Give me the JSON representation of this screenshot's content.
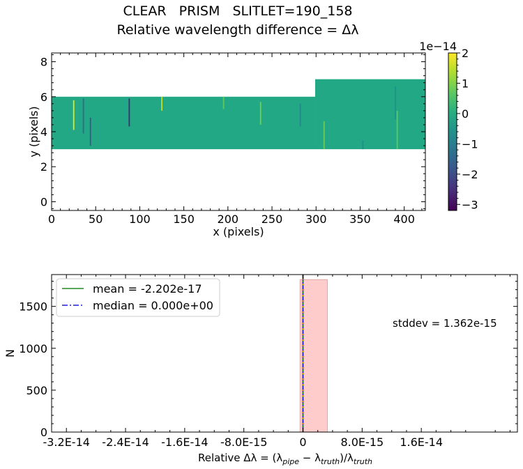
{
  "figure": {
    "title_line1": "CLEAR   PRISM   SLITLET=190_158",
    "title_line2": "Relative wavelength difference = Δλ"
  },
  "colors": {
    "viridis_low": "#440154",
    "viridis_mid": "#21908d",
    "viridis_high": "#fde725",
    "fill_value": "#22a884",
    "hist_fill": "#ffcccc",
    "mean_line": "#228b22",
    "median_line": "#1f1fdc",
    "zero_line": "#00008b"
  },
  "chart_data": [
    {
      "type": "heatmap",
      "xlabel": "x (pixels)",
      "ylabel": "y (pixels)",
      "xlim": [
        0,
        424
      ],
      "ylim": [
        -0.5,
        8.5
      ],
      "x_ticks": [
        0,
        50,
        100,
        150,
        200,
        250,
        300,
        350,
        400
      ],
      "y_ticks": [
        0,
        2,
        4,
        6,
        8
      ],
      "regions": [
        {
          "x0": 0,
          "x1": 299,
          "y0": 3,
          "y1": 6
        },
        {
          "x0": 299,
          "x1": 424,
          "y0": 3,
          "y1": 7
        }
      ],
      "features": [
        {
          "x": 25,
          "y0": 4.1,
          "y1": 5.8,
          "value": 1.8
        },
        {
          "x": 36,
          "y0": 3.9,
          "y1": 5.9,
          "value": -1.4
        },
        {
          "x": 44,
          "y0": 3.2,
          "y1": 4.8,
          "value": -1.8
        },
        {
          "x": 88,
          "y0": 4.3,
          "y1": 5.9,
          "value": -2.6
        },
        {
          "x": 125,
          "y0": 5.2,
          "y1": 6.0,
          "value": 1.5
        },
        {
          "x": 195,
          "y0": 5.3,
          "y1": 6.0,
          "value": 0.7
        },
        {
          "x": 237,
          "y0": 4.4,
          "y1": 5.7,
          "value": 0.9
        },
        {
          "x": 282,
          "y0": 4.3,
          "y1": 5.6,
          "value": -0.8
        },
        {
          "x": 309,
          "y0": 3.0,
          "y1": 4.6,
          "value": 0.8
        },
        {
          "x": 353,
          "y0": 3.0,
          "y1": 3.5,
          "value": -0.7
        },
        {
          "x": 390,
          "y0": 4.7,
          "y1": 6.6,
          "value": -0.6
        },
        {
          "x": 392,
          "y0": 3.0,
          "y1": 5.2,
          "value": 0.7
        }
      ],
      "colorbar": {
        "min": -3.2,
        "max": 2.0,
        "ticks": [
          "2",
          "1",
          "0",
          "−1",
          "−2",
          "−3"
        ],
        "tick_values": [
          2,
          1,
          0,
          -1,
          -2,
          -3
        ],
        "scale_label": "1e−14"
      }
    },
    {
      "type": "bar",
      "subtype": "histogram",
      "xlabel_prefix": "Relative Δλ = (λ",
      "xlabel_sub1": "pipe",
      "xlabel_mid": " − λ",
      "xlabel_sub2": "truth",
      "xlabel_mid2": ")/λ",
      "xlabel_sub3": "truth",
      "ylabel": "N",
      "xlim": [
        -3.4e-14,
        2.9e-14
      ],
      "ylim": [
        0,
        1880
      ],
      "x_ticks": [
        -3.2e-14,
        -2.4e-14,
        -1.6e-14,
        -8e-15,
        0,
        8e-15,
        1.6e-14
      ],
      "x_tick_labels": [
        "-3.2E-14",
        "-2.4E-14",
        "-1.6E-14",
        "-8.0E-15",
        "0",
        "8.0E-15",
        "1.6E-14"
      ],
      "y_ticks": [
        0,
        500,
        1000,
        1500
      ],
      "y_tick_labels": [
        "0",
        "500",
        "1000",
        "1500"
      ],
      "bins": [
        {
          "x0": -4e-16,
          "x1": 3.3e-15,
          "count": 1820
        }
      ],
      "mean": -2.202e-17,
      "median": 0.0,
      "legend": {
        "mean_label": "mean = -2.202e-17",
        "median_label": "median = 0.000e+00",
        "position": "upper-left"
      },
      "stddev_label": "stddev = 1.362e-15"
    }
  ]
}
